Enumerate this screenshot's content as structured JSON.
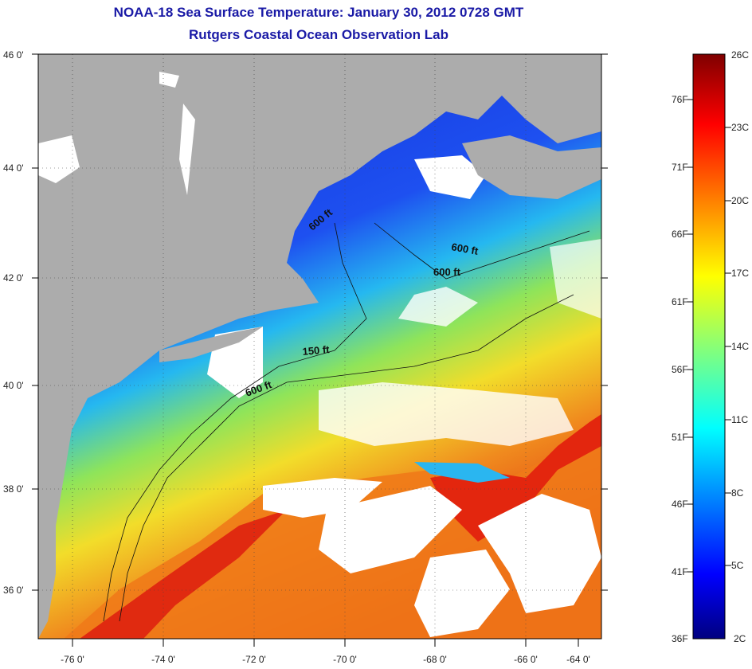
{
  "header": {
    "title": "NOAA-18 Sea Surface Temperature:  January 30, 2012 0728 GMT",
    "subtitle": "Rutgers Coastal Ocean Observation Lab"
  },
  "map": {
    "lat_ticks": [
      "46 0'",
      "44 0'",
      "42 0'",
      "40 0'",
      "38 0'",
      "36 0'"
    ],
    "lon_ticks": [
      "-76 0'",
      "-74 0'",
      "-72 0'",
      "-70 0'",
      "-68 0'",
      "-66 0'",
      "-64 0'"
    ],
    "lat_range": [
      35,
      46
    ],
    "lon_range": [
      -77,
      -63
    ],
    "contour_labels": [
      "600 ft",
      "600 ft",
      "600 ft",
      "150 ft",
      "600 ft"
    ],
    "colors": {
      "land": "#acacac",
      "cloud": "#ffffff",
      "ocean_cold": "#1f3fd8",
      "ocean_warm": "#e33a12"
    }
  },
  "colorbar": {
    "fahrenheit_labels": [
      "76F",
      "71F",
      "66F",
      "61F",
      "56F",
      "51F",
      "46F",
      "41F",
      "36F"
    ],
    "celsius_labels": [
      "26C",
      "23C",
      "20C",
      "17C",
      "14C",
      "11C",
      "8C",
      "5C",
      "2C"
    ],
    "range_celsius": [
      2,
      26
    ],
    "colormap": "jet"
  }
}
